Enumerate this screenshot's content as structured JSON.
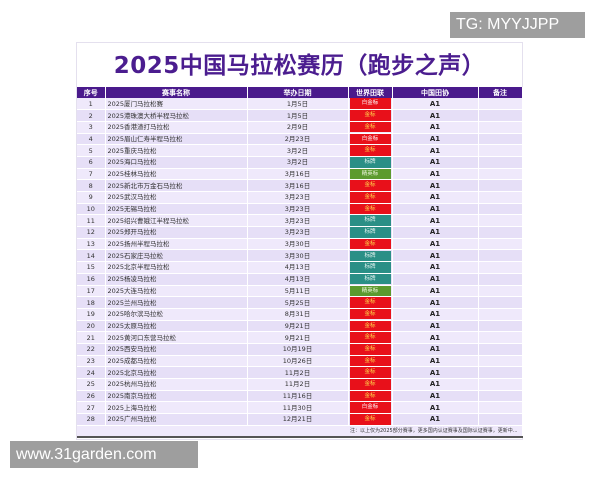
{
  "watermark_top": "TG: MYYJJPP",
  "watermark_bottom": "www.31garden.com",
  "title": "2025中国马拉松赛历（跑步之声）",
  "columns": [
    "序号",
    "赛事名称",
    "举办日期",
    "世界田联",
    "中国田协",
    "备注"
  ],
  "label_colors": {
    "白金标": {
      "bg": "#e8101a",
      "fg": "#ffffff"
    },
    "金标": {
      "bg": "#e8101a",
      "fg": "#ffd84a"
    },
    "标牌": {
      "bg": "#2a8f86",
      "fg": "#e8f5f2"
    },
    "精英标": {
      "bg": "#5c9a2e",
      "fg": "#f0f7e0"
    }
  },
  "rows": [
    [
      "1",
      "2025厦门马拉松赛",
      "1月5日",
      "白金标",
      "A1",
      ""
    ],
    [
      "2",
      "2025港珠澳大桥半程马拉松",
      "1月5日",
      "金标",
      "A1",
      ""
    ],
    [
      "3",
      "2025香港渣打马拉松",
      "2月9日",
      "金标",
      "A1",
      ""
    ],
    [
      "4",
      "2025眉山仁寿半程马拉松",
      "2月23日",
      "白金标",
      "A1",
      ""
    ],
    [
      "5",
      "2025重庆马拉松",
      "3月2日",
      "金标",
      "A1",
      ""
    ],
    [
      "6",
      "2025海口马拉松",
      "3月2日",
      "标牌",
      "A1",
      ""
    ],
    [
      "7",
      "2025桂林马拉松",
      "3月16日",
      "精英标",
      "A1",
      ""
    ],
    [
      "8",
      "2025新北市万金石马拉松",
      "3月16日",
      "金标",
      "A1",
      ""
    ],
    [
      "9",
      "2025武汉马拉松",
      "3月23日",
      "金标",
      "A1",
      ""
    ],
    [
      "10",
      "2025无锡马拉松",
      "3月23日",
      "金标",
      "A1",
      ""
    ],
    [
      "11",
      "2025绍兴曹娥江半程马拉松",
      "3月23日",
      "标牌",
      "A1",
      ""
    ],
    [
      "12",
      "2025郑开马拉松",
      "3月23日",
      "标牌",
      "A1",
      ""
    ],
    [
      "13",
      "2025扬州半程马拉松",
      "3月30日",
      "金标",
      "A1",
      ""
    ],
    [
      "14",
      "2025石家庄马拉松",
      "3月30日",
      "标牌",
      "A1",
      ""
    ],
    [
      "15",
      "2025北京半程马拉松",
      "4月13日",
      "标牌",
      "A1",
      ""
    ],
    [
      "16",
      "2025杨凌马拉松",
      "4月13日",
      "标牌",
      "A1",
      ""
    ],
    [
      "17",
      "2025大连马拉松",
      "5月11日",
      "精英标",
      "A1",
      ""
    ],
    [
      "18",
      "2025兰州马拉松",
      "5月25日",
      "金标",
      "A1",
      ""
    ],
    [
      "19",
      "2025哈尔滨马拉松",
      "8月31日",
      "金标",
      "A1",
      ""
    ],
    [
      "20",
      "2025太原马拉松",
      "9月21日",
      "金标",
      "A1",
      ""
    ],
    [
      "21",
      "2025黄河口东营马拉松",
      "9月21日",
      "金标",
      "A1",
      ""
    ],
    [
      "22",
      "2025西安马拉松",
      "10月19日",
      "金标",
      "A1",
      ""
    ],
    [
      "23",
      "2025成都马拉松",
      "10月26日",
      "金标",
      "A1",
      ""
    ],
    [
      "24",
      "2025北京马拉松",
      "11月2日",
      "金标",
      "A1",
      ""
    ],
    [
      "25",
      "2025杭州马拉松",
      "11月2日",
      "金标",
      "A1",
      ""
    ],
    [
      "26",
      "2025南京马拉松",
      "11月16日",
      "金标",
      "A1",
      ""
    ],
    [
      "27",
      "2025上海马拉松",
      "11月30日",
      "白金标",
      "A1",
      ""
    ],
    [
      "28",
      "2025广州马拉松",
      "12月21日",
      "金标",
      "A1",
      ""
    ]
  ],
  "footnote": "注：以上仅为2025部分赛事，更多国内认证赛事及国际认证赛事，更新中..."
}
